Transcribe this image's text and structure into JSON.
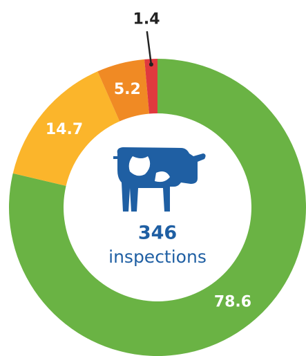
{
  "chart_data": {
    "type": "pie",
    "donut": true,
    "values": [
      78.6,
      14.7,
      5.2,
      1.4
    ],
    "colors": [
      "#6ab344",
      "#fbb52b",
      "#f08a24",
      "#e0393e"
    ],
    "center_text": [
      "346",
      "inspections"
    ]
  }
}
